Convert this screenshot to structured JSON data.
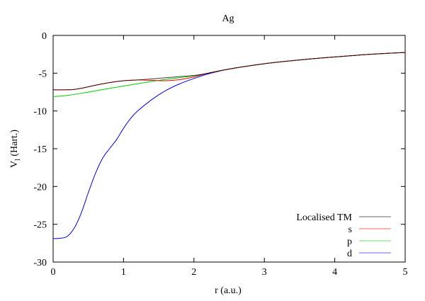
{
  "chart_data": {
    "type": "line",
    "title": "Ag",
    "xlabel": "r (a.u.)",
    "ylabel_main": "V",
    "ylabel_sub": "l",
    "ylabel_rest": " (Hart.)",
    "xlim": [
      0,
      5
    ],
    "ylim": [
      -30,
      0
    ],
    "xticks": [
      0,
      1,
      2,
      3,
      4,
      5
    ],
    "yticks": [
      0,
      -5,
      -10,
      -15,
      -20,
      -25,
      -30
    ],
    "grid": false,
    "legend_placement": "bottom-right",
    "series": [
      {
        "name": "Localised TM",
        "color": "#000000",
        "x": [
          0,
          0.2,
          0.3,
          0.4,
          0.6,
          0.8,
          1.0,
          1.2,
          1.4,
          1.6,
          1.8,
          2.0,
          2.2,
          2.5,
          3,
          3.5,
          4,
          4.5,
          5
        ],
        "y": [
          -7.2,
          -7.2,
          -7.15,
          -7.0,
          -6.6,
          -6.25,
          -6.0,
          -5.9,
          -5.75,
          -5.6,
          -5.45,
          -5.3,
          -5.0,
          -4.45,
          -3.75,
          -3.25,
          -2.85,
          -2.5,
          -2.25
        ]
      },
      {
        "name": "s",
        "color": "#ff0000",
        "x": [
          0,
          0.2,
          0.3,
          0.4,
          0.6,
          0.8,
          1.0,
          1.2,
          1.4,
          1.6,
          1.8,
          2.0,
          2.2,
          2.5,
          3,
          3.5,
          4,
          4.5,
          5
        ],
        "y": [
          -7.2,
          -7.2,
          -7.15,
          -7.0,
          -6.6,
          -6.25,
          -6.0,
          -5.9,
          -5.95,
          -6.0,
          -5.85,
          -5.5,
          -5.0,
          -4.45,
          -3.75,
          -3.25,
          -2.85,
          -2.5,
          -2.25
        ]
      },
      {
        "name": "p",
        "color": "#00cc00",
        "x": [
          0,
          0.2,
          0.5,
          1.0,
          1.5,
          2.0,
          2.2,
          2.5,
          3,
          3.5,
          4,
          4.5,
          5
        ],
        "y": [
          -8.1,
          -7.95,
          -7.5,
          -6.7,
          -5.95,
          -5.35,
          -5.0,
          -4.45,
          -3.75,
          -3.25,
          -2.85,
          -2.5,
          -2.25
        ]
      },
      {
        "name": "d",
        "color": "#0000ff",
        "x": [
          0,
          0.1,
          0.2,
          0.3,
          0.4,
          0.5,
          0.6,
          0.7,
          0.8,
          0.9,
          1.0,
          1.1,
          1.2,
          1.4,
          1.6,
          1.8,
          2.0,
          2.2,
          2.5,
          3,
          3.5,
          4,
          4.5,
          5
        ],
        "y": [
          -26.9,
          -26.85,
          -26.6,
          -25.5,
          -23.5,
          -20.8,
          -18.3,
          -16.3,
          -15.0,
          -13.8,
          -12.3,
          -11.0,
          -10.0,
          -8.5,
          -7.3,
          -6.4,
          -5.7,
          -5.1,
          -4.45,
          -3.75,
          -3.25,
          -2.85,
          -2.5,
          -2.25
        ]
      }
    ]
  }
}
